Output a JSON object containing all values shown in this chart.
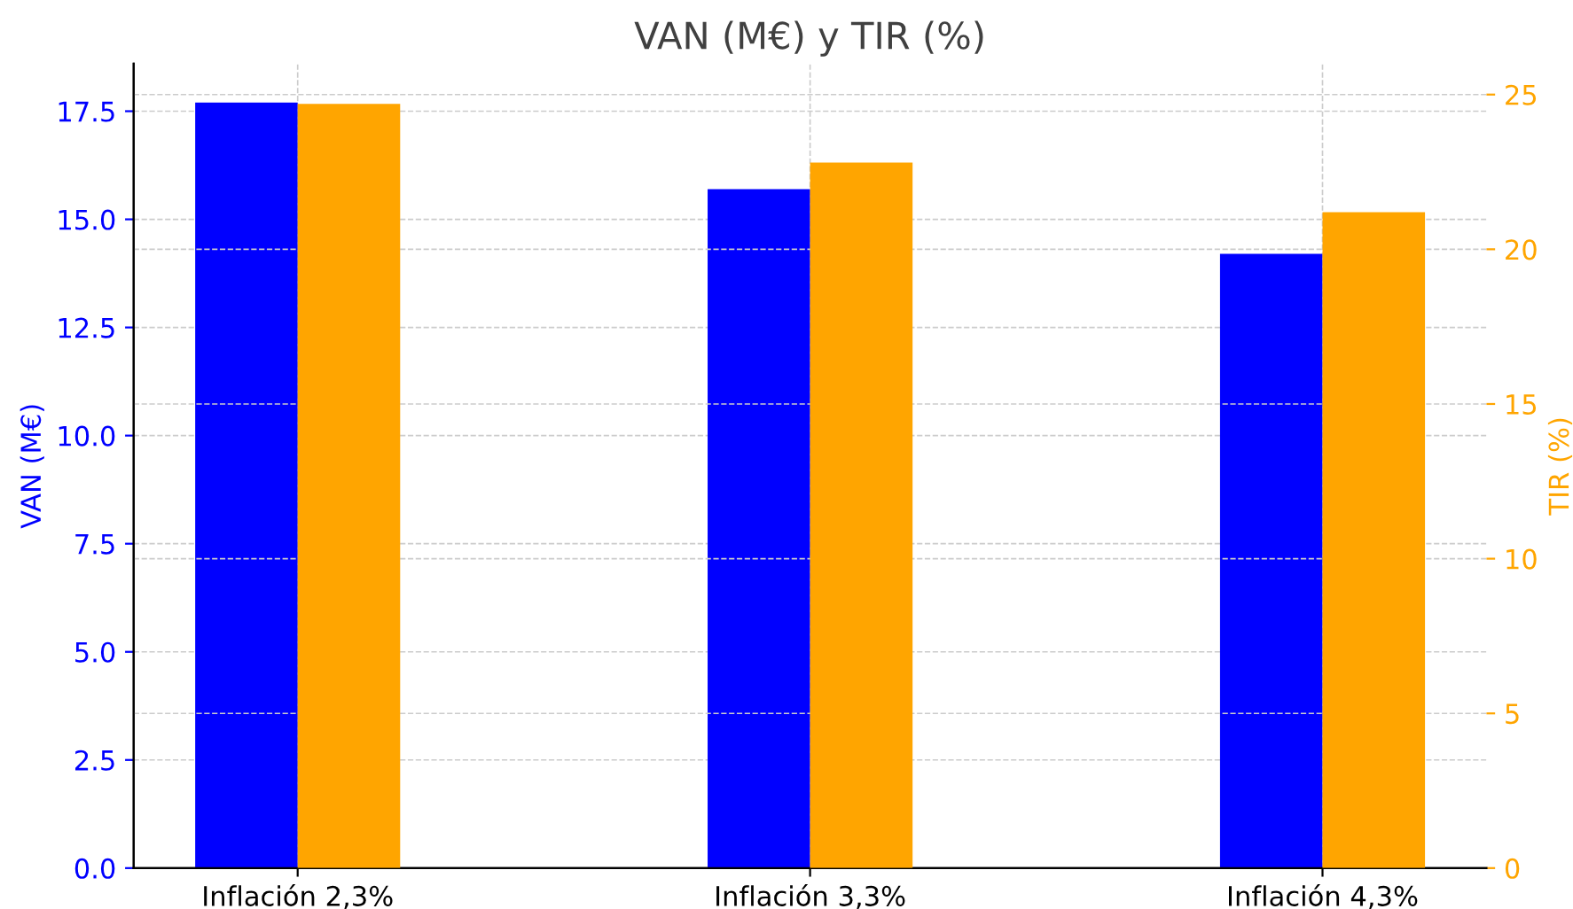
{
  "chart_data": {
    "type": "bar",
    "title": "VAN (M€) y TIR (%)",
    "ylabel": "VAN (M€)",
    "y2label": "TIR (%)",
    "categories": [
      "Inflación 2,3%",
      "Inflación 3,3%",
      "Inflación 4,3%"
    ],
    "series": [
      {
        "color": "#0000ff",
        "values": [
          17.7,
          15.7,
          14.2
        ]
      },
      {
        "color": "#ffa500",
        "values": [
          24.7,
          22.8,
          21.2
        ],
        "axis": "y2"
      }
    ],
    "ylim": [
      0,
      18.6
    ],
    "yticks": [
      {
        "value": 0,
        "label": "0.0"
      },
      {
        "value": 2.5,
        "label": "2.5"
      },
      {
        "value": 5,
        "label": "5.0"
      },
      {
        "value": 7.5,
        "label": "7.5"
      },
      {
        "value": 10,
        "label": "10.0"
      },
      {
        "value": 12.5,
        "label": "12.5"
      },
      {
        "value": 15,
        "label": "15.0"
      },
      {
        "value": 17.5,
        "label": "17.5"
      }
    ],
    "y2lim": [
      0,
      26
    ],
    "y2ticks": [
      0,
      5,
      10,
      15,
      20,
      25
    ],
    "grid": true
  }
}
